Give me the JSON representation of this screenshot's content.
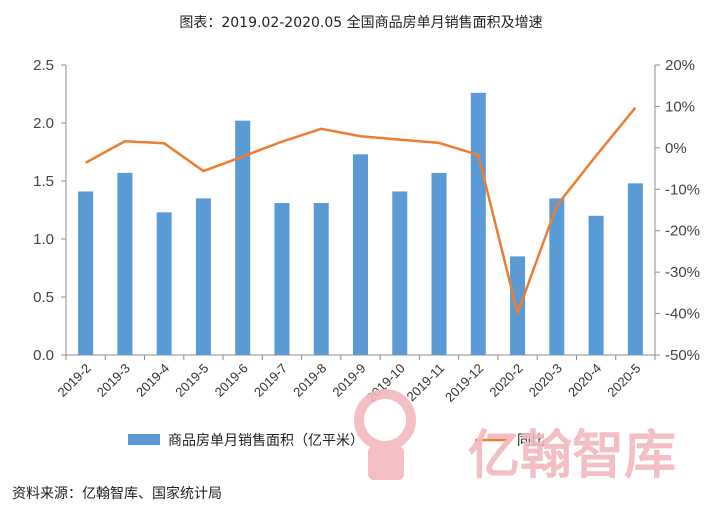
{
  "chart_data": {
    "type": "bar",
    "title": "图表：2019.02-2020.05 全国商品房单月销售面积及增速",
    "categories": [
      "2019-2",
      "2019-3",
      "2019-4",
      "2019-5",
      "2019-6",
      "2019-7",
      "2019-8",
      "2019-9",
      "2019-10",
      "2019-11",
      "2019-12",
      "2020-2",
      "2020-3",
      "2020-4",
      "2020-5"
    ],
    "series": [
      {
        "name": "商品房单月销售面积（亿平米）",
        "type": "bar",
        "axis": "left",
        "color": "#5b9bd5",
        "values": [
          1.41,
          1.57,
          1.23,
          1.35,
          2.02,
          1.31,
          1.31,
          1.73,
          1.41,
          1.57,
          2.26,
          0.85,
          1.35,
          1.2,
          1.48
        ]
      },
      {
        "name": "同比",
        "type": "line",
        "axis": "right",
        "color": "#ed7d31",
        "values": [
          -3.6,
          1.6,
          1.1,
          -5.6,
          -2.1,
          1.5,
          4.6,
          2.8,
          2.0,
          1.2,
          -1.7,
          -39.9,
          -13.9,
          -1.9,
          9.7
        ]
      }
    ],
    "y_left": {
      "min": 0,
      "max": 2.5,
      "ticks": [
        "0.0",
        "0.5",
        "1.0",
        "1.5",
        "2.0",
        "2.5"
      ]
    },
    "y_right": {
      "min": -50,
      "max": 20,
      "ticks": [
        "-50%",
        "-40%",
        "-30%",
        "-20%",
        "-10%",
        "0%",
        "10%",
        "20%"
      ]
    },
    "grid": false,
    "legend_position": "bottom"
  },
  "source": "资料来源：亿翰智库、国家统计局",
  "watermark": "亿翰智库"
}
